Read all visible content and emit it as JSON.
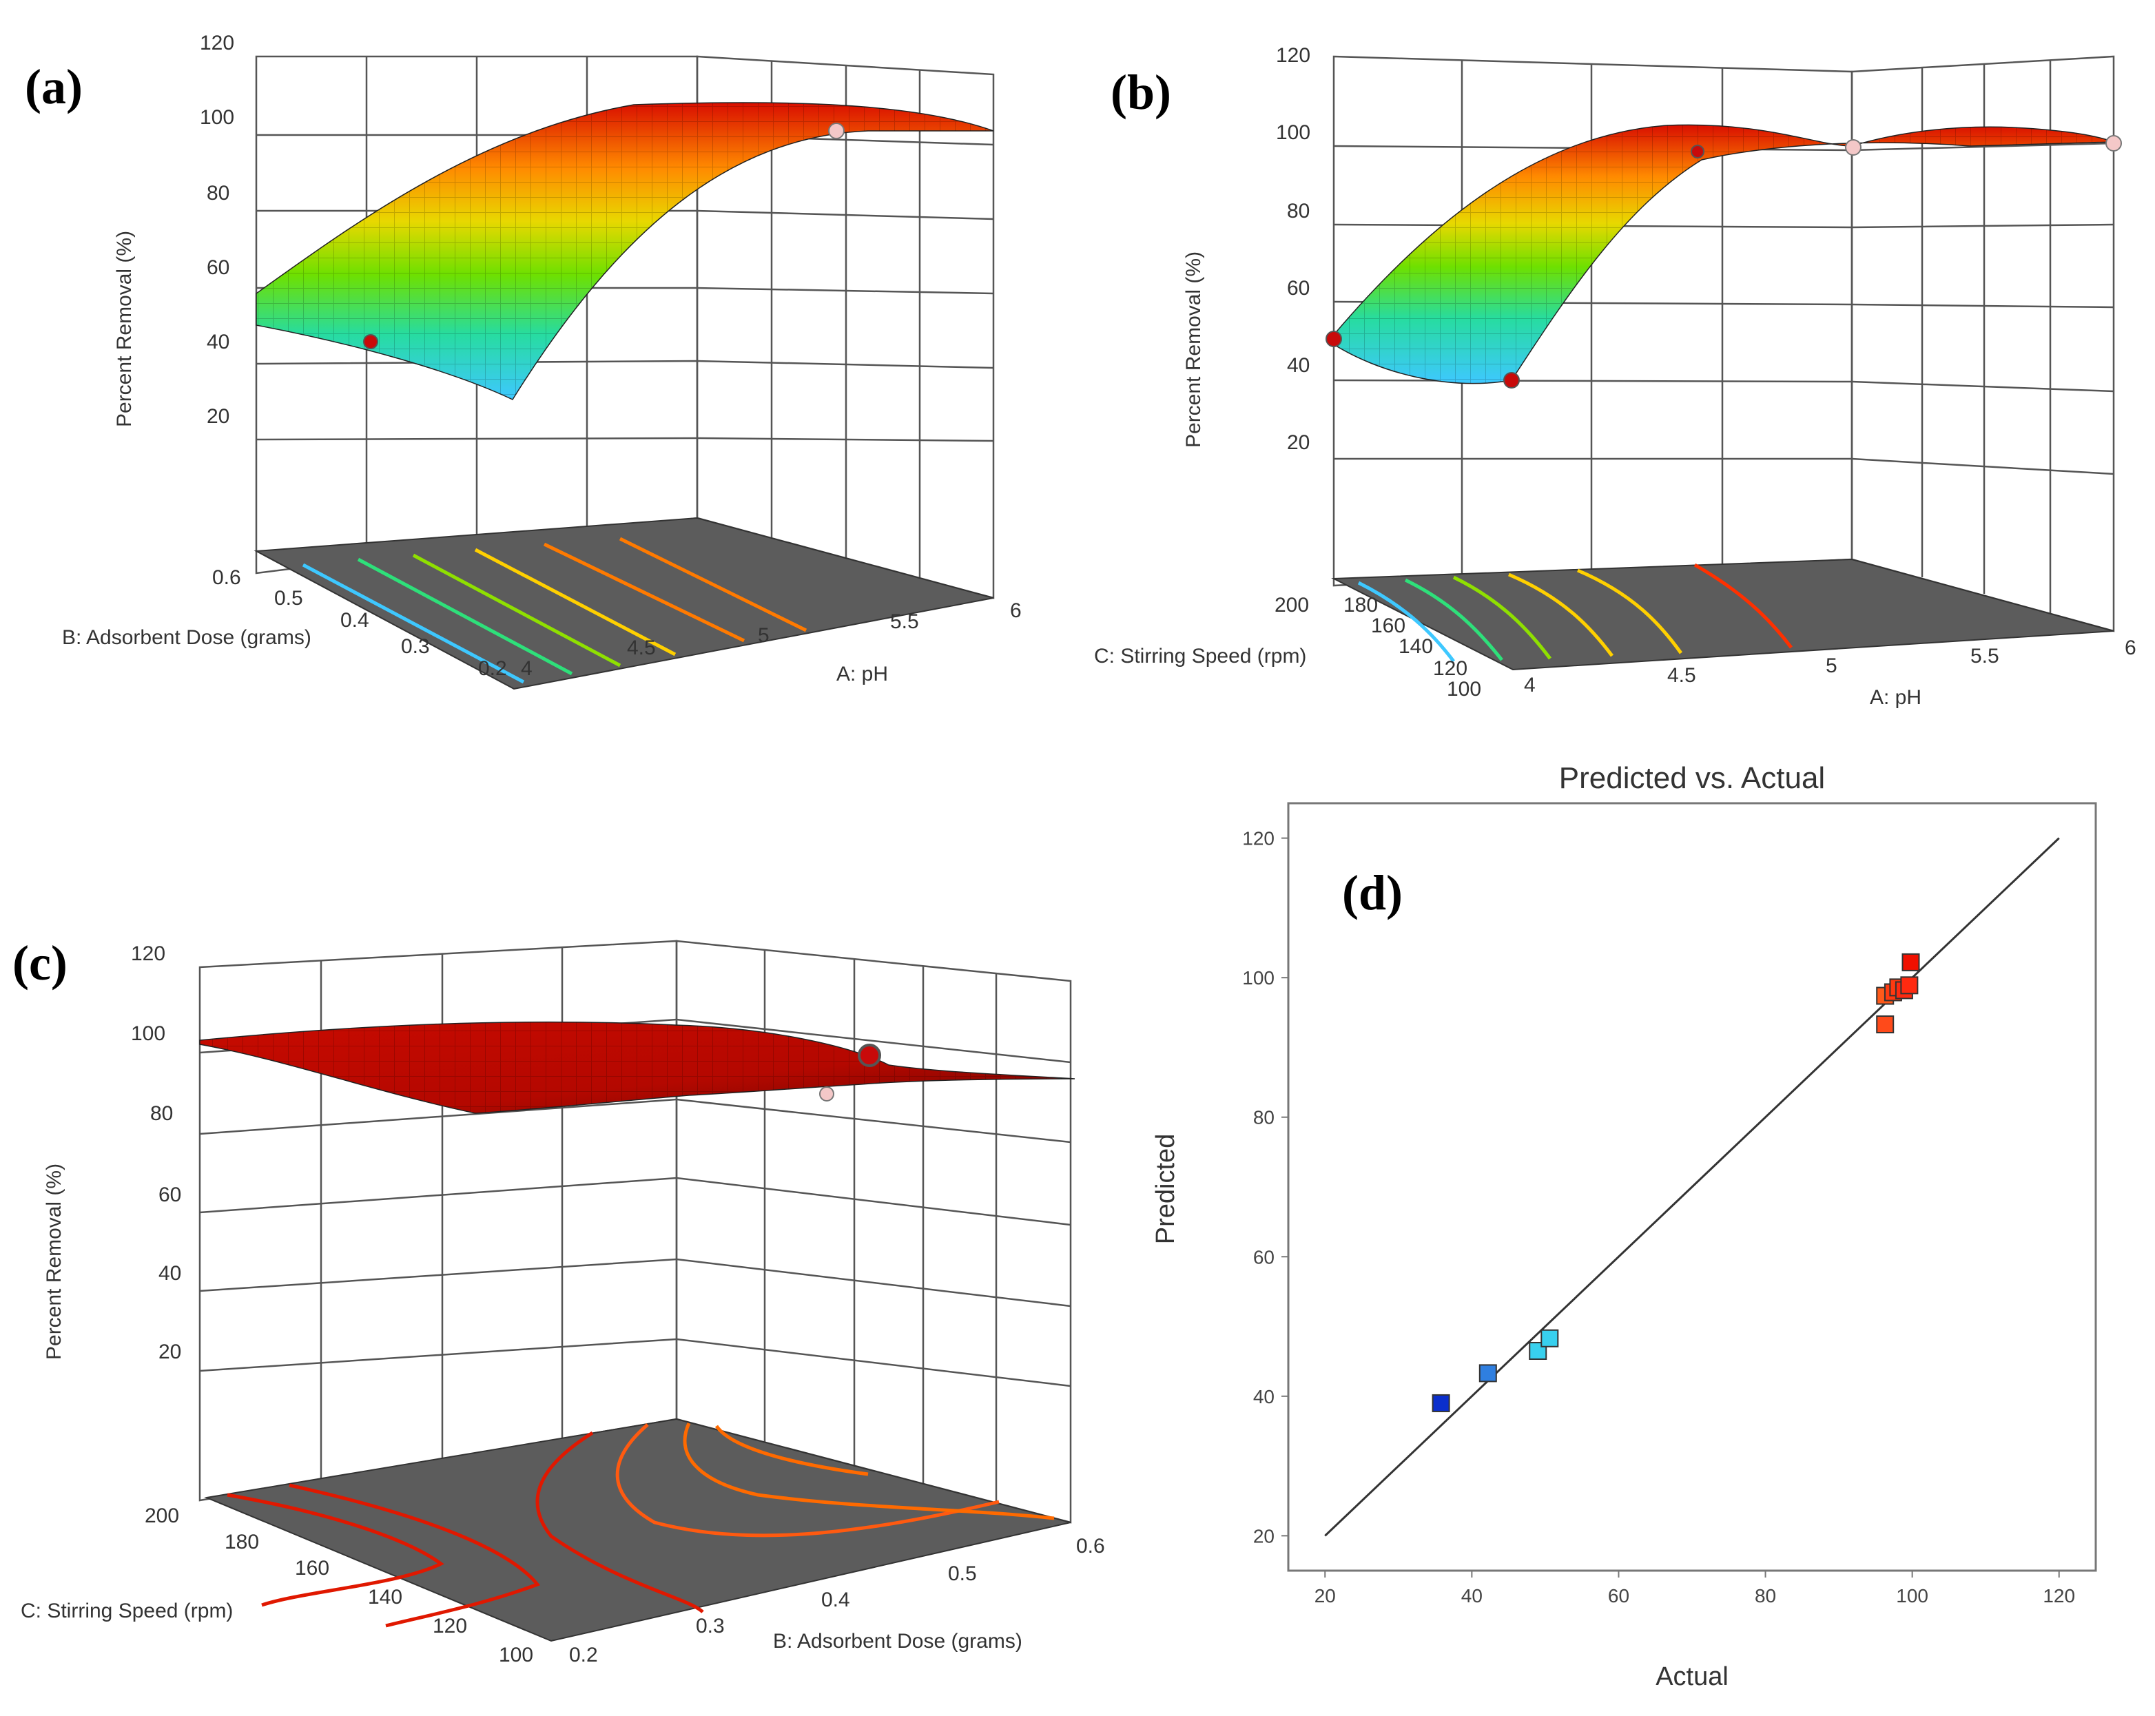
{
  "figure_labels": [
    "(a)",
    "(b)",
    "(c)",
    "(d)"
  ],
  "chart_data": [
    {
      "type": "surface",
      "label": "(a)",
      "zlabel": "Percent Removal  (%)",
      "z_ticks": [
        20,
        40,
        60,
        80,
        100,
        120
      ],
      "xlabel": "A: pH",
      "x_ticks": [
        "4",
        "4.5",
        "5",
        "5.5",
        "6"
      ],
      "ylabel": "B: Adsorbent Dose (grams)",
      "y_ticks": [
        "0.2",
        "0.3",
        "0.4",
        "0.5",
        "0.6"
      ],
      "colors": [
        "#3fc6ff",
        "#2ee07a",
        "#8fe000",
        "#ffd000",
        "#ff7a00",
        "#dd1200"
      ]
    },
    {
      "type": "surface",
      "label": "(b)",
      "zlabel": "Percent Removal  (%)",
      "z_ticks": [
        20,
        40,
        60,
        80,
        100,
        120
      ],
      "xlabel": "A: pH",
      "x_ticks": [
        "4",
        "4.5",
        "5",
        "5.5",
        "6"
      ],
      "ylabel": "C: Stirring Speed (rpm)",
      "y_ticks": [
        "100",
        "120",
        "140",
        "160",
        "180",
        "200"
      ],
      "colors": [
        "#3fc6ff",
        "#2ee07a",
        "#8fe000",
        "#ffd000",
        "#ff7a00",
        "#dd1200"
      ]
    },
    {
      "type": "surface",
      "label": "(c)",
      "zlabel": "Percent Removal  (%)",
      "z_ticks": [
        20,
        40,
        60,
        80,
        100,
        120
      ],
      "xlabel": "B: Adsorbent Dose (grams)",
      "x_ticks": [
        "0.2",
        "0.3",
        "0.4",
        "0.5",
        "0.6"
      ],
      "ylabel": "C: Stirring Speed (rpm)",
      "y_ticks": [
        "100",
        "120",
        "140",
        "160",
        "180",
        "200"
      ],
      "colors": [
        "#dd1200",
        "#ff6a00"
      ]
    },
    {
      "type": "scatter",
      "label": "(d)",
      "title": "Predicted vs. Actual",
      "xlabel": "Actual",
      "ylabel": "Predicted",
      "xlim": [
        15,
        125
      ],
      "ylim": [
        15,
        125
      ],
      "x_ticks": [
        20,
        40,
        60,
        80,
        100,
        120
      ],
      "y_ticks": [
        20,
        40,
        60,
        80,
        100,
        120
      ],
      "reference_line": {
        "x": [
          20,
          120
        ],
        "y": [
          20,
          120
        ]
      },
      "points": [
        {
          "x": 35.8,
          "y": 39.0,
          "color": "#0b2fcc"
        },
        {
          "x": 42.2,
          "y": 43.3,
          "color": "#2f7fe0"
        },
        {
          "x": 49.0,
          "y": 46.5,
          "color": "#38d0ee"
        },
        {
          "x": 50.6,
          "y": 48.3,
          "color": "#38d0ee"
        },
        {
          "x": 96.3,
          "y": 93.3,
          "color": "#ff4a1a"
        },
        {
          "x": 96.3,
          "y": 97.4,
          "color": "#ff5a1a"
        },
        {
          "x": 97.4,
          "y": 97.9,
          "color": "#ff3a10"
        },
        {
          "x": 98.1,
          "y": 98.6,
          "color": "#ff3a10"
        },
        {
          "x": 98.9,
          "y": 98.2,
          "color": "#ff2a10"
        },
        {
          "x": 99.6,
          "y": 98.9,
          "color": "#ff2a10"
        },
        {
          "x": 99.8,
          "y": 102.2,
          "color": "#f01000"
        }
      ]
    }
  ]
}
